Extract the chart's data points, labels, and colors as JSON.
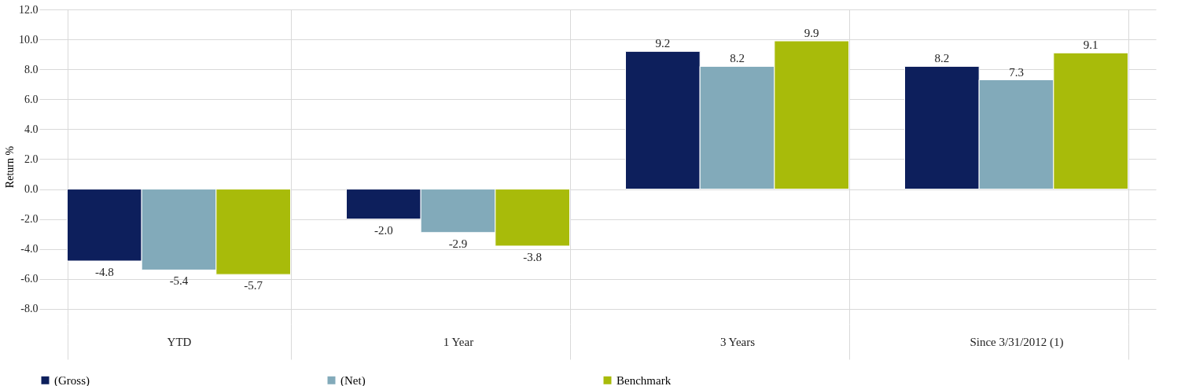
{
  "chart_data": {
    "type": "bar",
    "ylabel": "Return %",
    "categories": [
      "YTD",
      "1 Year",
      "3 Years",
      "Since 3/31/2012 (1)"
    ],
    "series": [
      {
        "name": "(Gross)",
        "color": "#0d1f5c",
        "values": [
          -4.8,
          -2.0,
          9.2,
          8.2
        ],
        "value_labels": [
          "-4.8",
          "-2.0",
          "9.2",
          "8.2"
        ]
      },
      {
        "name": "(Net)",
        "color": "#82aaba",
        "values": [
          -5.4,
          -2.9,
          8.2,
          7.3
        ],
        "value_labels": [
          "-5.4",
          "-2.9",
          "8.2",
          "7.3"
        ]
      },
      {
        "name": "Benchmark",
        "color": "#a8bb0a",
        "values": [
          -5.7,
          -3.8,
          9.9,
          9.1
        ],
        "value_labels": [
          "-5.7",
          "-3.8",
          "9.9",
          "9.1"
        ]
      }
    ],
    "ylim": [
      -9,
      12
    ],
    "yticks": [
      {
        "value": -8,
        "label": "-8.0"
      },
      {
        "value": -6,
        "label": "-6.0"
      },
      {
        "value": -4,
        "label": "-4.0"
      },
      {
        "value": -2,
        "label": "-2.0"
      },
      {
        "value": 0,
        "label": "0.0"
      },
      {
        "value": 2,
        "label": "2.0"
      },
      {
        "value": 4,
        "label": "4.0"
      },
      {
        "value": 6,
        "label": "6.0"
      },
      {
        "value": 8,
        "label": "8.0"
      },
      {
        "value": 10,
        "label": "10.0"
      },
      {
        "value": 12,
        "label": "12.0"
      }
    ],
    "grid": true,
    "legend": "bottom"
  }
}
